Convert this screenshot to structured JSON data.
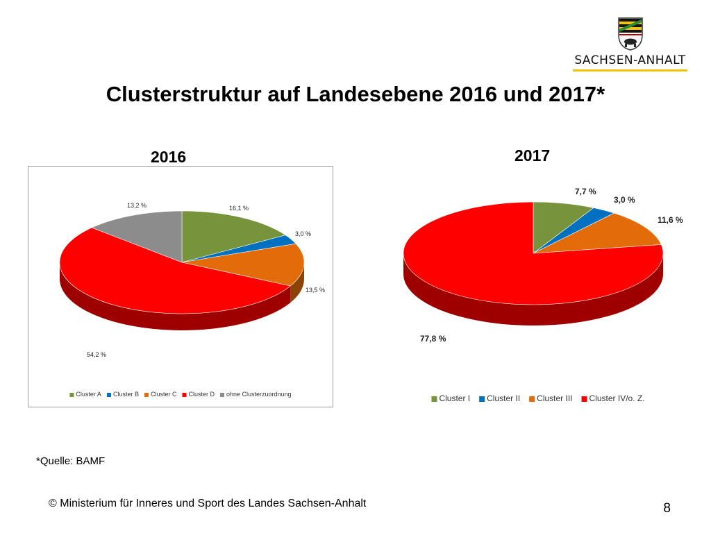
{
  "logo": {
    "text": "SACHSEN-ANHALT",
    "icon": "coat-of-arms-icon"
  },
  "title": "Clusterstruktur auf Landesebene 2016 und 2017*",
  "chart_data": [
    {
      "type": "pie",
      "title": "2016",
      "categories": [
        "Cluster A",
        "Cluster B",
        "Cluster C",
        "Cluster D",
        "ohne Clusterzuordnung"
      ],
      "values": [
        16.1,
        3.0,
        13.5,
        54.2,
        13.2
      ],
      "labels": [
        "16,1 %",
        "3,0 %",
        "13,5 %",
        "54,2 %",
        "13,2 %"
      ],
      "colors": [
        "#77933c",
        "#0070c0",
        "#e36c0a",
        "#ff0000",
        "#8c8c8c"
      ],
      "legend": "bottom",
      "three_d": true
    },
    {
      "type": "pie",
      "title": "2017",
      "categories": [
        "Cluster I",
        "Cluster II",
        "Cluster III",
        "Cluster IV/o. Z."
      ],
      "values": [
        7.7,
        3.0,
        11.6,
        77.8
      ],
      "labels": [
        "7,7 %",
        "3,0 %",
        "11,6 %",
        "77,8 %"
      ],
      "colors": [
        "#77933c",
        "#0070c0",
        "#e36c0a",
        "#ff0000"
      ],
      "legend": "bottom",
      "three_d": true
    }
  ],
  "source": "*Quelle: BAMF",
  "footer": "© Ministerium für Inneres und Sport des Landes Sachsen-Anhalt",
  "page_number": "8"
}
